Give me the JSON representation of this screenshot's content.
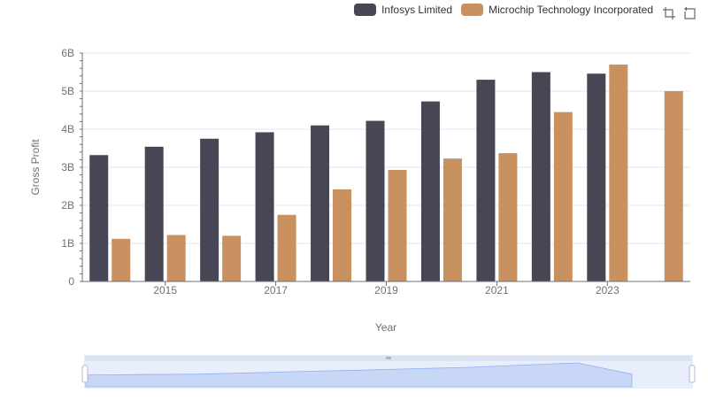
{
  "chart_data": {
    "type": "bar",
    "title": "",
    "xlabel": "Year",
    "ylabel": "Gross Profit",
    "x": [
      2014,
      2015,
      2016,
      2017,
      2018,
      2019,
      2020,
      2021,
      2022,
      2023,
      2024
    ],
    "xticks": [
      "2015",
      "2017",
      "2019",
      "2021",
      "2023"
    ],
    "xtick_values": [
      2015,
      2017,
      2019,
      2021,
      2023
    ],
    "yticks": [
      "0",
      "1B",
      "2B",
      "3B",
      "4B",
      "5B",
      "6B"
    ],
    "ylim": [
      0,
      6000000000
    ],
    "grid": true,
    "legend_position": "top-right",
    "series": [
      {
        "name": "Infosys Limited",
        "color": "#464655",
        "values": [
          3320000000,
          3540000000,
          3750000000,
          3920000000,
          4100000000,
          4220000000,
          4730000000,
          5300000000,
          5500000000,
          5460000000,
          null
        ]
      },
      {
        "name": "Microchip Technology Incorporated",
        "color": "#c8915f",
        "values": [
          1120000000,
          1220000000,
          1200000000,
          1750000000,
          2420000000,
          2930000000,
          3230000000,
          3370000000,
          4450000000,
          5700000000,
          5000000000
        ]
      }
    ]
  },
  "toolbox": {
    "icons": [
      "zoom-icon",
      "restore-icon"
    ]
  }
}
